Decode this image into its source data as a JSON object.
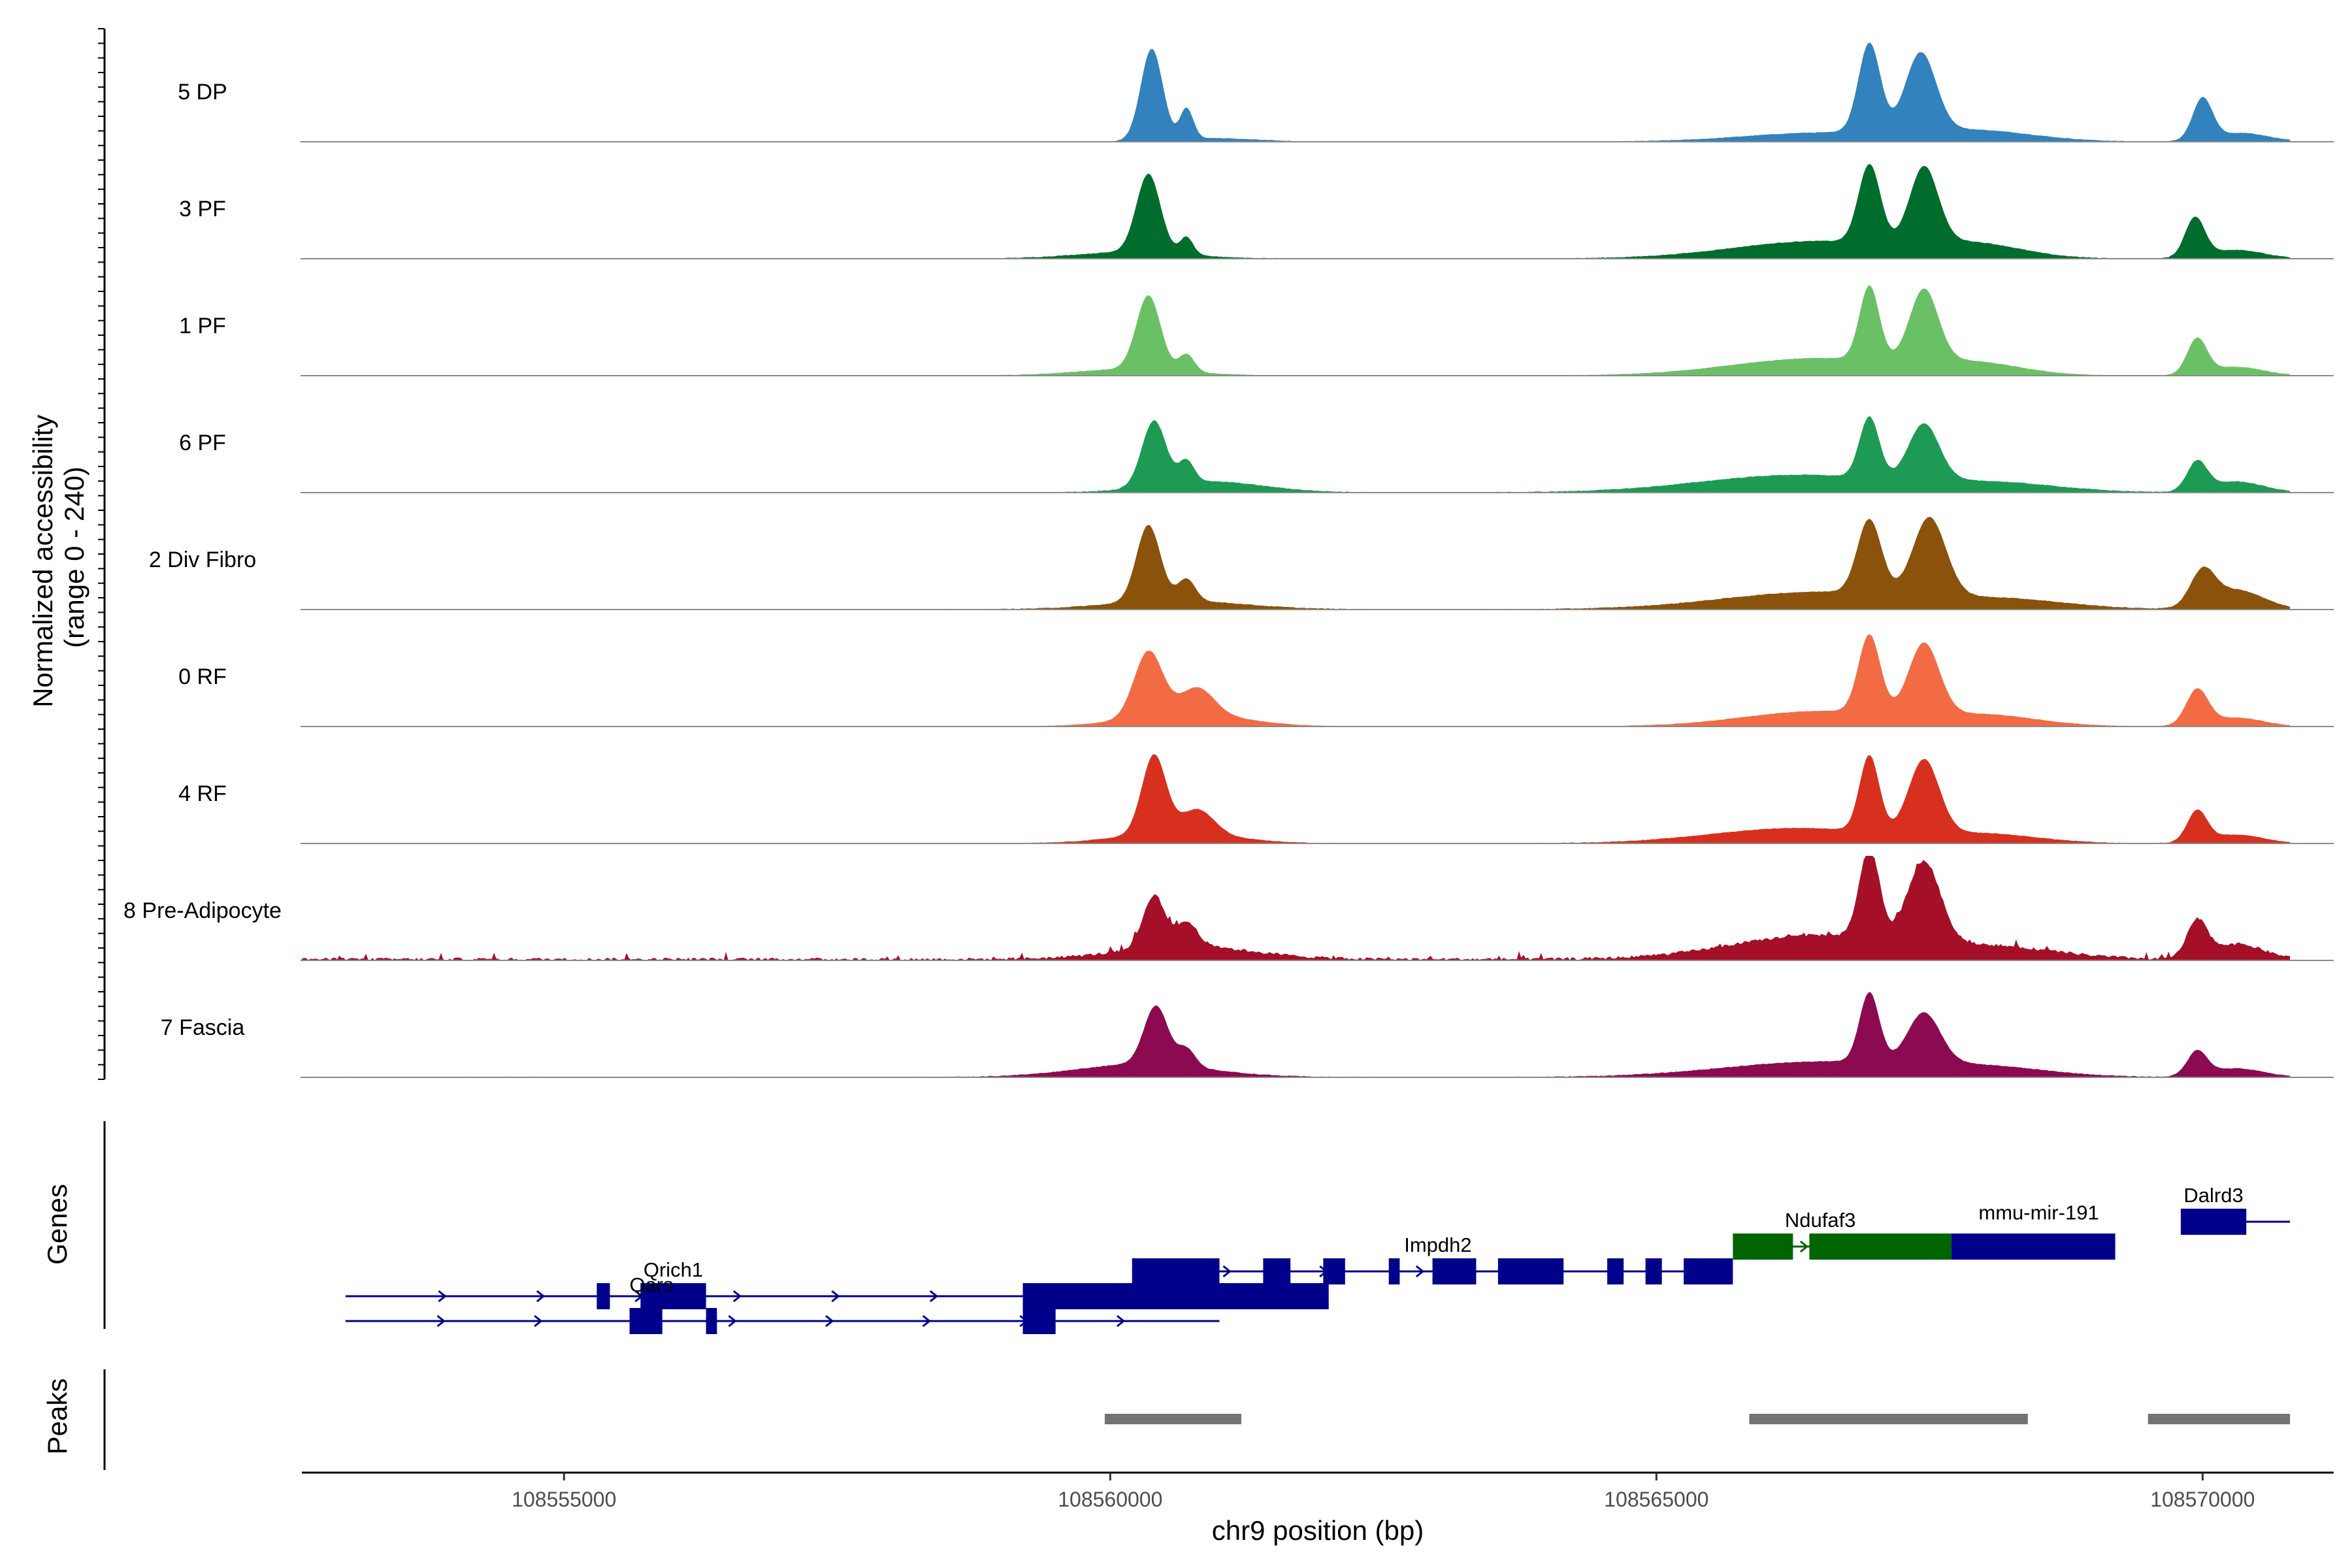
{
  "chart_data": {
    "type": "area",
    "title": "",
    "xlabel": "chr9 position (bp)",
    "ylabel_line1": "Normalized accessibility",
    "ylabel_line2": "(range 0 - 240)",
    "ylim": [
      0,
      240
    ],
    "xlim": [
      108552600,
      108571200
    ],
    "data_range": [
      108552600,
      108570800
    ],
    "x_ticks": [
      108555000,
      108560000,
      108565000,
      108570000
    ],
    "x_tick_labels": [
      "108555000",
      "108560000",
      "108565000",
      "108570000"
    ],
    "tracks": [
      {
        "name": "5 DP",
        "color": "#3182bd",
        "noise": 0.6,
        "peaks": [
          [
            108560380,
            210,
            100
          ],
          [
            108560700,
            70,
            60
          ],
          [
            108566950,
            205,
            100
          ],
          [
            108567420,
            180,
            140
          ],
          [
            108570000,
            95,
            90
          ]
        ],
        "broad": [
          [
            108560900,
            8,
            400
          ],
          [
            108566500,
            20,
            700
          ],
          [
            108567900,
            25,
            550
          ],
          [
            108570350,
            20,
            250
          ]
        ]
      },
      {
        "name": "3 PF",
        "color": "#006d2c",
        "noise": 0.7,
        "peaks": [
          [
            108560350,
            180,
            110
          ],
          [
            108560700,
            40,
            60
          ],
          [
            108566950,
            180,
            100
          ],
          [
            108567450,
            175,
            130
          ],
          [
            108569930,
            90,
            90
          ]
        ],
        "broad": [
          [
            108560200,
            15,
            500
          ],
          [
            108566500,
            40,
            800
          ],
          [
            108567900,
            30,
            450
          ],
          [
            108570300,
            20,
            250
          ]
        ]
      },
      {
        "name": "1 PF",
        "color": "#6ac165",
        "noise": 0.5,
        "peaks": [
          [
            108560350,
            170,
            110
          ],
          [
            108560700,
            40,
            70
          ],
          [
            108566950,
            170,
            90
          ],
          [
            108567450,
            165,
            130
          ],
          [
            108569950,
            80,
            90
          ]
        ],
        "broad": [
          [
            108560200,
            15,
            500
          ],
          [
            108566500,
            40,
            800
          ],
          [
            108567900,
            25,
            450
          ],
          [
            108570300,
            20,
            250
          ]
        ]
      },
      {
        "name": "6 PF",
        "color": "#1d9a53",
        "noise": 0.8,
        "peaks": [
          [
            108560400,
            150,
            110
          ],
          [
            108560700,
            50,
            70
          ],
          [
            108566950,
            140,
            90
          ],
          [
            108567450,
            130,
            140
          ],
          [
            108569950,
            65,
            90
          ]
        ],
        "broad": [
          [
            108560900,
            25,
            500
          ],
          [
            108566300,
            40,
            900
          ],
          [
            108568100,
            20,
            600
          ],
          [
            108570300,
            25,
            250
          ]
        ]
      },
      {
        "name": "2 Div Fibro",
        "color": "#8b520b",
        "noise": 0.8,
        "peaks": [
          [
            108560350,
            175,
            110
          ],
          [
            108560700,
            50,
            80
          ],
          [
            108566950,
            170,
            110
          ],
          [
            108567500,
            180,
            150
          ],
          [
            108570000,
            75,
            110
          ]
        ],
        "broad": [
          [
            108560600,
            20,
            600
          ],
          [
            108566500,
            40,
            900
          ],
          [
            108568200,
            20,
            600
          ],
          [
            108570300,
            45,
            250
          ]
        ]
      },
      {
        "name": "0 RF",
        "color": "#f26b44",
        "noise": 0.5,
        "peaks": [
          [
            108560350,
            150,
            130
          ],
          [
            108560800,
            60,
            150
          ],
          [
            108566950,
            180,
            100
          ],
          [
            108567450,
            165,
            140
          ],
          [
            108569950,
            80,
            100
          ]
        ],
        "broad": [
          [
            108560700,
            30,
            500
          ],
          [
            108566500,
            35,
            700
          ],
          [
            108568000,
            25,
            500
          ],
          [
            108570300,
            20,
            250
          ]
        ]
      },
      {
        "name": "4 RF",
        "color": "#d7301f",
        "noise": 0.6,
        "peaks": [
          [
            108560400,
            180,
            110
          ],
          [
            108560800,
            55,
            150
          ],
          [
            108566950,
            175,
            90
          ],
          [
            108567450,
            170,
            140
          ],
          [
            108569950,
            70,
            90
          ]
        ],
        "broad": [
          [
            108560600,
            25,
            500
          ],
          [
            108566300,
            35,
            800
          ],
          [
            108568000,
            20,
            500
          ],
          [
            108570300,
            20,
            250
          ]
        ]
      },
      {
        "name": "8 Pre-Adipocyte",
        "color": "#a50f28",
        "noise": 3.2,
        "peaks": [
          [
            108560400,
            120,
            100
          ],
          [
            108560700,
            55,
            100
          ],
          [
            108566950,
            210,
            90
          ],
          [
            108567450,
            185,
            150
          ],
          [
            108569950,
            80,
            90
          ]
        ],
        "broad": [
          [
            108560700,
            30,
            600
          ],
          [
            108566500,
            55,
            800
          ],
          [
            108568100,
            25,
            600
          ],
          [
            108570300,
            35,
            250
          ]
        ]
      },
      {
        "name": "7 Fascia",
        "color": "#8c0a50",
        "noise": 0.8,
        "peaks": [
          [
            108560420,
            135,
            110
          ],
          [
            108560700,
            40,
            80
          ],
          [
            108566950,
            160,
            90
          ],
          [
            108567450,
            115,
            150
          ],
          [
            108569950,
            55,
            90
          ]
        ],
        "broad": [
          [
            108560300,
            30,
            600
          ],
          [
            108566500,
            35,
            900
          ],
          [
            108568000,
            20,
            600
          ],
          [
            108570300,
            20,
            250
          ]
        ]
      }
    ],
    "gene_track_label": "Genes",
    "gene_color": "#00008b",
    "gene_color_alt": "#006400",
    "genes": [
      {
        "name": "Qrich1",
        "show_label": true,
        "row": 2,
        "color": "#00008b",
        "label_at": 108556000,
        "label_row": 2,
        "start": 108553000,
        "end": 108562000,
        "exons": [
          [
            108555300,
            108555420
          ],
          [
            108555700,
            108556300
          ],
          [
            108559200,
            108562000
          ]
        ]
      },
      {
        "name": "Qars",
        "show_label": true,
        "row": 3,
        "color": "#00008b",
        "label_at": 108555800,
        "label_row": 2.6,
        "start": 108553000,
        "end": 108561000,
        "exons": [
          [
            108555600,
            108555900
          ],
          [
            108556300,
            108556400
          ],
          [
            108559200,
            108559500
          ]
        ]
      },
      {
        "name": "Impdh2",
        "show_label": true,
        "row": 1,
        "color": "#00008b",
        "label_at": 108563000,
        "label_row": 1,
        "start": 108560200,
        "end": 108565500,
        "exons": [
          [
            108560200,
            108561000
          ],
          [
            108561400,
            108561650
          ],
          [
            108561950,
            108562150
          ],
          [
            108562550,
            108562650
          ],
          [
            108562950,
            108563350
          ],
          [
            108563550,
            108564150
          ],
          [
            108564550,
            108564700
          ],
          [
            108564900,
            108565050
          ],
          [
            108565250,
            108565700
          ]
        ]
      },
      {
        "name": "Ndufaf3",
        "show_label": true,
        "row": 0,
        "color": "#006400",
        "label_at": 108566500,
        "label_row": 0,
        "start": 108565700,
        "end": 108567700,
        "exons": [
          [
            108565700,
            108566250
          ],
          [
            108566400,
            108567700
          ]
        ]
      },
      {
        "name": "mmu-mir-191",
        "show_label": true,
        "row": 0,
        "color": "#00008b",
        "label_at": 108568500,
        "label_row": -0.3,
        "start": 108567700,
        "end": 108569200,
        "exons": [
          [
            108567700,
            108569200
          ]
        ]
      },
      {
        "name": "Dalrd3",
        "show_label": true,
        "row": -1,
        "color": "#00008b",
        "label_at": 108570100,
        "label_row": -1,
        "start": 108569800,
        "end": 108570800,
        "exons": [
          [
            108569800,
            108570400
          ]
        ]
      }
    ],
    "peak_track_label": "Peaks",
    "peak_color": "#737373",
    "peak_regions": [
      [
        108559950,
        108561200
      ],
      [
        108565850,
        108568400
      ],
      [
        108569500,
        108570800
      ]
    ]
  }
}
